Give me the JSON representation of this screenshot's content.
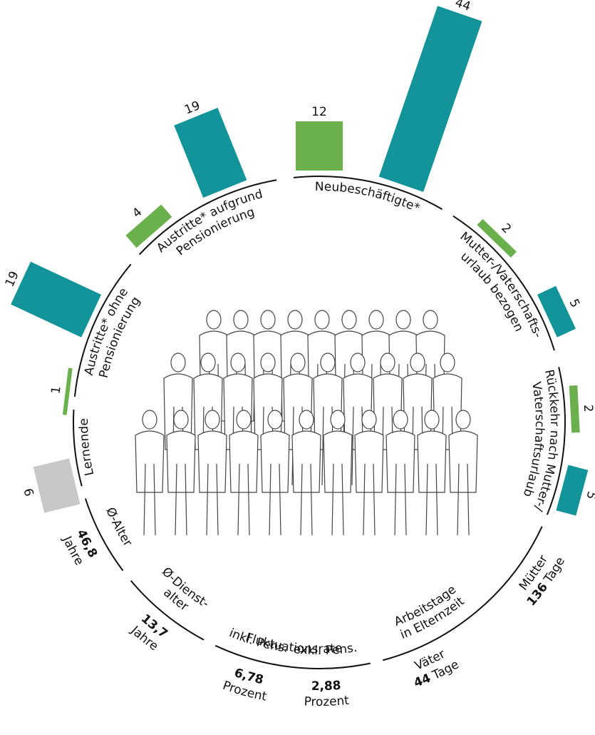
{
  "sections": [
    {
      "label": [
        "Neubeschäftigte*"
      ],
      "bars": [
        {
          "value": 12,
          "color": "#6ab04c"
        },
        {
          "value": 44,
          "color": "#13939a"
        }
      ]
    },
    {
      "label": [
        "Mutter-/Vaterschafts-",
        "urlaub bezogen"
      ],
      "bars": [
        {
          "value": 2,
          "color": "#6ab04c"
        },
        {
          "value": 5,
          "color": "#13939a"
        }
      ]
    },
    {
      "label": [
        "Rückkehr nach Mutter-/",
        "Vaterschaftsurlaub"
      ],
      "bars": [
        {
          "value": 2,
          "color": "#6ab04c"
        },
        {
          "value": 5,
          "color": "#13939a"
        }
      ]
    },
    {
      "label": [
        "Arbeitstage",
        "in Elternzeit"
      ],
      "items": [
        {
          "label": "Mütter",
          "value": "136",
          "unit": "Tage"
        },
        {
          "label": "Väter",
          "value": "44",
          "unit": "Tage"
        }
      ]
    },
    {
      "label": [
        "Fluktuationsrate"
      ],
      "items": [
        {
          "label": "exkl. Pens.",
          "value": "2,88",
          "unit": "Prozent"
        },
        {
          "label": "inkl. Pens.",
          "value": "6,78",
          "unit": "Prozent"
        }
      ]
    },
    {
      "label": [
        "Ø-Dienst-",
        "alter"
      ],
      "items": [
        {
          "value": "13,7",
          "unit": "Jahre"
        }
      ]
    },
    {
      "label": [
        "Ø-Alter"
      ],
      "items": [
        {
          "value": "46,8",
          "unit": "Jahre"
        }
      ]
    },
    {
      "label": [
        "Lernende"
      ],
      "bars": [
        {
          "value": 9,
          "color": "#c8c8c8"
        }
      ]
    },
    {
      "label": [
        "Austritte* ohne",
        "Pensionierung"
      ],
      "bars": [
        {
          "value": 1,
          "color": "#6ab04c"
        },
        {
          "value": 19,
          "color": "#13939a"
        }
      ]
    },
    {
      "label": [
        "Austritte* aufgrund",
        "Pensionierung"
      ],
      "bars": [
        {
          "value": 4,
          "color": "#6ab04c"
        },
        {
          "value": 19,
          "color": "#13939a"
        }
      ]
    }
  ]
}
